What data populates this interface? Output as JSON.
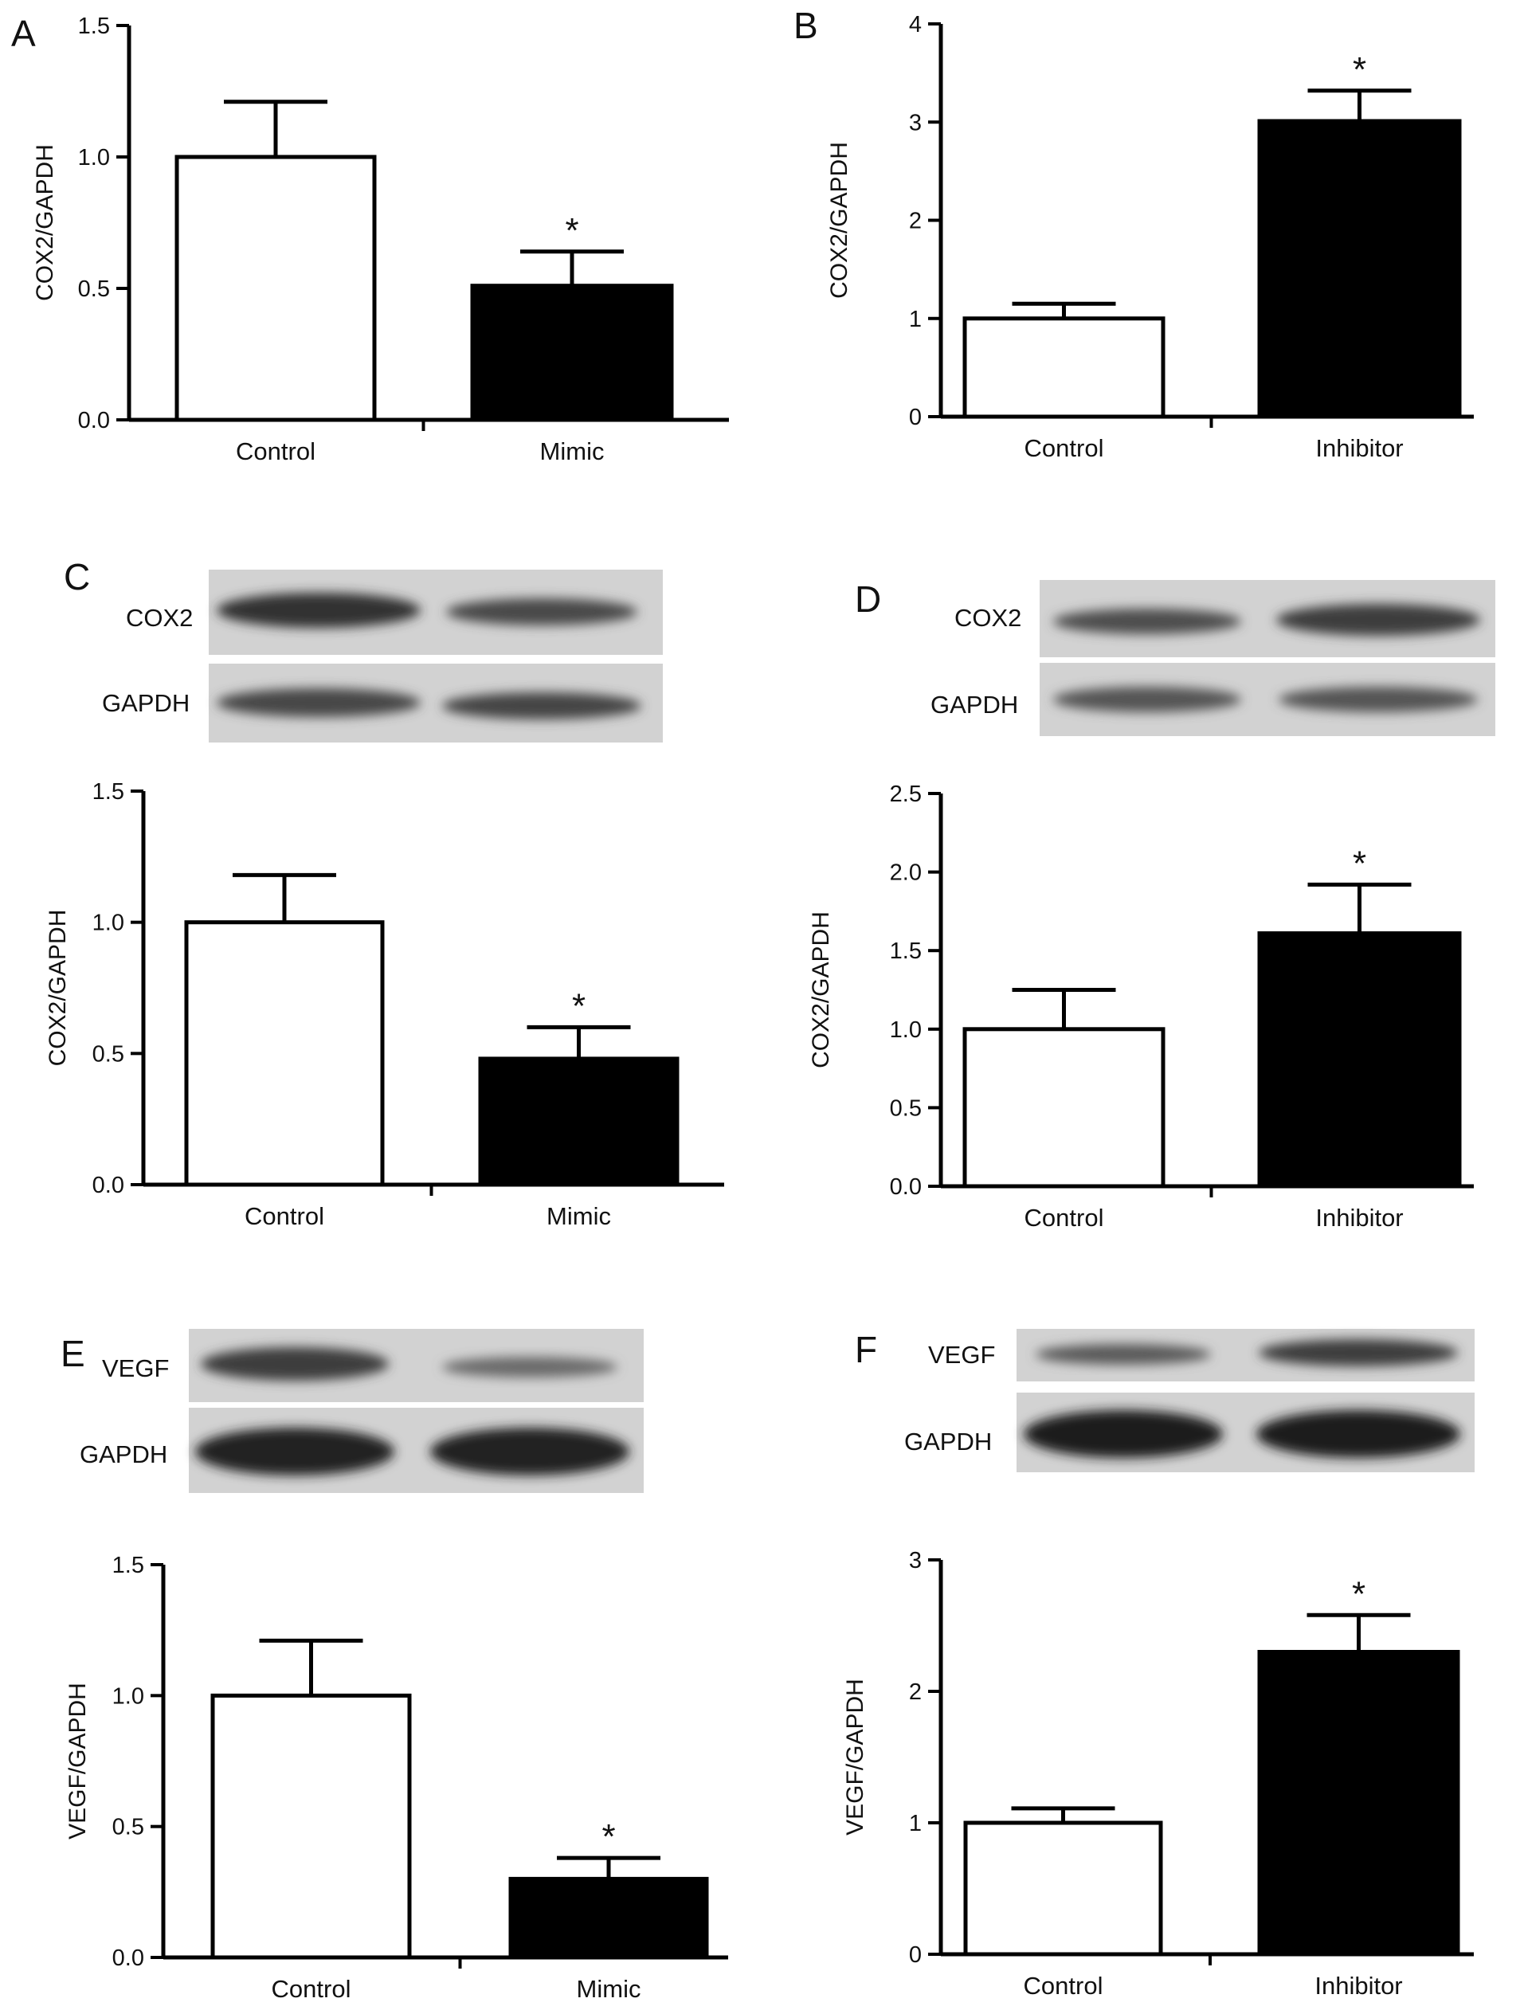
{
  "panels": [
    {
      "letter": "A",
      "chart_data": {
        "type": "bar",
        "categories": [
          "Control",
          "Mimic"
        ],
        "values": [
          1.0,
          0.51
        ],
        "errors": [
          0.21,
          0.13
        ],
        "significance": [
          "",
          "*"
        ],
        "ylabel": "COX2/GAPDH",
        "ylim": [
          0,
          1.5
        ],
        "yticks": [
          "0.0",
          "0.5",
          "1.0",
          "1.5"
        ],
        "bar_colors": [
          "#ffffff",
          "#000000"
        ]
      }
    },
    {
      "letter": "B",
      "chart_data": {
        "type": "bar",
        "categories": [
          "Control",
          "Inhibitor"
        ],
        "values": [
          1.0,
          3.01
        ],
        "errors": [
          0.15,
          0.31
        ],
        "significance": [
          "",
          "*"
        ],
        "ylabel": "COX2/GAPDH",
        "ylim": [
          0,
          4
        ],
        "yticks": [
          "0",
          "1",
          "2",
          "3",
          "4"
        ],
        "bar_colors": [
          "#ffffff",
          "#000000"
        ]
      }
    },
    {
      "letter": "C",
      "blot_labels": [
        "COX2",
        "GAPDH"
      ],
      "chart_data": {
        "type": "bar",
        "categories": [
          "Control",
          "Mimic"
        ],
        "values": [
          1.0,
          0.48
        ],
        "errors": [
          0.18,
          0.12
        ],
        "significance": [
          "",
          "*"
        ],
        "ylabel": "COX2/GAPDH",
        "ylim": [
          0,
          1.5
        ],
        "yticks": [
          "0.0",
          "0.5",
          "1.0",
          "1.5"
        ],
        "bar_colors": [
          "#ffffff",
          "#000000"
        ]
      }
    },
    {
      "letter": "D",
      "blot_labels": [
        "COX2",
        "GAPDH"
      ],
      "chart_data": {
        "type": "bar",
        "categories": [
          "Control",
          "Inhibitor"
        ],
        "values": [
          1.0,
          1.61
        ],
        "errors": [
          0.25,
          0.31
        ],
        "significance": [
          "",
          "*"
        ],
        "ylabel": "COX2/GAPDH",
        "ylim": [
          0,
          2.5
        ],
        "yticks": [
          "0.0",
          "0.5",
          "1.0",
          "1.5",
          "2.0",
          "2.5"
        ],
        "bar_colors": [
          "#ffffff",
          "#000000"
        ]
      }
    },
    {
      "letter": "E",
      "blot_labels": [
        "VEGF",
        "GAPDH"
      ],
      "chart_data": {
        "type": "bar",
        "categories": [
          "Control",
          "Mimic"
        ],
        "values": [
          1.0,
          0.3
        ],
        "errors": [
          0.21,
          0.08
        ],
        "significance": [
          "",
          "*"
        ],
        "ylabel": "VEGF/GAPDH",
        "ylim": [
          0,
          1.5
        ],
        "yticks": [
          "0.0",
          "0.5",
          "1.0",
          "1.5"
        ],
        "bar_colors": [
          "#ffffff",
          "#000000"
        ]
      }
    },
    {
      "letter": "F",
      "blot_labels": [
        "VEGF",
        "GAPDH"
      ],
      "chart_data": {
        "type": "bar",
        "categories": [
          "Control",
          "Inhibitor"
        ],
        "values": [
          1.0,
          2.3
        ],
        "errors": [
          0.11,
          0.28
        ],
        "significance": [
          "",
          "*"
        ],
        "ylabel": "VEGF/GAPDH",
        "ylim": [
          0,
          3
        ],
        "yticks": [
          "0",
          "1",
          "2",
          "3"
        ],
        "bar_colors": [
          "#ffffff",
          "#000000"
        ]
      }
    }
  ]
}
